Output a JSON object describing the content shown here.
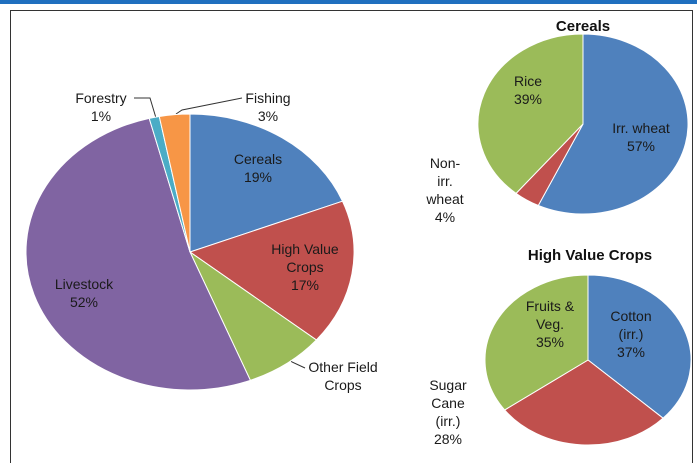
{
  "chart_data": [
    {
      "type": "pie",
      "categories": [
        "Cereals",
        "High Value Crops",
        "Other Field Crops",
        "Livestock",
        "Forestry",
        "Fishing"
      ],
      "values": [
        19,
        17,
        8,
        52,
        1,
        3
      ],
      "value_labels": [
        "19%",
        "17%",
        null,
        "52%",
        "1%",
        "3%"
      ],
      "colors": [
        "#4f81bd",
        "#c0504d",
        "#9bbb59",
        "#8064a2",
        "#4bacc6",
        "#f79646"
      ]
    },
    {
      "type": "pie",
      "title": "Cereals",
      "categories": [
        "Irr. wheat",
        "Non-irr. wheat",
        "Rice"
      ],
      "values": [
        57,
        4,
        39
      ],
      "value_labels": [
        "57%",
        "4%",
        "39%"
      ],
      "colors": [
        "#4f81bd",
        "#c0504d",
        "#9bbb59"
      ]
    },
    {
      "type": "pie",
      "title": "High Value Crops",
      "categories": [
        "Cotton (irr.)",
        "Sugar Cane (irr.)",
        "Fruits & Veg."
      ],
      "values": [
        37,
        28,
        35
      ],
      "value_labels": [
        "37%",
        "28%",
        "35%"
      ],
      "colors": [
        "#4f81bd",
        "#c0504d",
        "#9bbb59"
      ]
    }
  ]
}
